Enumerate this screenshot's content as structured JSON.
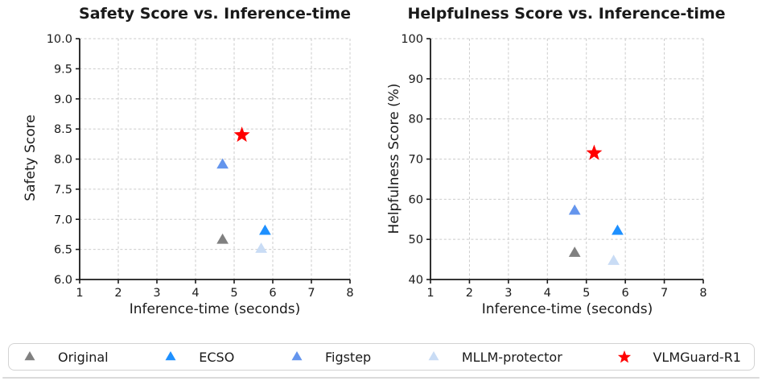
{
  "chart_data": [
    {
      "type": "scatter",
      "title": "Safety Score vs. Inference-time",
      "xlabel": "Inference-time (seconds)",
      "ylabel": "Safety Score",
      "xlim": [
        1,
        8
      ],
      "ylim": [
        6.0,
        10.0
      ],
      "grid": true,
      "legend_position": "bottom-shared",
      "xticks": [
        1,
        2,
        3,
        4,
        5,
        6,
        7,
        8
      ],
      "xtick_labels": [
        "1",
        "2",
        "3",
        "4",
        "5",
        "6",
        "7",
        "8"
      ],
      "yticks": [
        6.0,
        6.5,
        7.0,
        7.5,
        8.0,
        8.5,
        9.0,
        9.5,
        10.0
      ],
      "ytick_labels": [
        "6.0",
        "6.5",
        "7.0",
        "7.5",
        "8.0",
        "8.5",
        "9.0",
        "9.5",
        "10.0"
      ],
      "series": [
        {
          "name": "Original",
          "marker": "triangle",
          "color": "#808080",
          "points": [
            [
              4.7,
              6.65
            ]
          ]
        },
        {
          "name": "ECSO",
          "marker": "triangle",
          "color": "#1E90FF",
          "points": [
            [
              5.8,
              6.8
            ]
          ]
        },
        {
          "name": "Figstep",
          "marker": "triangle",
          "color": "#6495ED",
          "points": [
            [
              4.7,
              7.9
            ]
          ]
        },
        {
          "name": "MLLM-protector",
          "marker": "triangle",
          "color": "#C9DCF5",
          "points": [
            [
              5.7,
              6.5
            ]
          ]
        },
        {
          "name": "VLMGuard-R1",
          "marker": "star",
          "color": "#FF0000",
          "points": [
            [
              5.2,
              8.4
            ]
          ]
        }
      ]
    },
    {
      "type": "scatter",
      "title": "Helpfulness Score vs. Inference-time",
      "xlabel": "Inference-time (seconds)",
      "ylabel": "Helpfulness Score (%)",
      "xlim": [
        1,
        8
      ],
      "ylim": [
        40,
        100
      ],
      "grid": true,
      "legend_position": "bottom-shared",
      "xticks": [
        1,
        2,
        3,
        4,
        5,
        6,
        7,
        8
      ],
      "xtick_labels": [
        "1",
        "2",
        "3",
        "4",
        "5",
        "6",
        "7",
        "8"
      ],
      "yticks": [
        40,
        50,
        60,
        70,
        80,
        90,
        100
      ],
      "ytick_labels": [
        "40",
        "50",
        "60",
        "70",
        "80",
        "90",
        "100"
      ],
      "series": [
        {
          "name": "Original",
          "marker": "triangle",
          "color": "#808080",
          "points": [
            [
              4.7,
              46.5
            ]
          ]
        },
        {
          "name": "ECSO",
          "marker": "triangle",
          "color": "#1E90FF",
          "points": [
            [
              5.8,
              52
            ]
          ]
        },
        {
          "name": "Figstep",
          "marker": "triangle",
          "color": "#6495ED",
          "points": [
            [
              4.7,
              57
            ]
          ]
        },
        {
          "name": "MLLM-protector",
          "marker": "triangle",
          "color": "#C9DCF5",
          "points": [
            [
              5.7,
              44.5
            ]
          ]
        },
        {
          "name": "VLMGuard-R1",
          "marker": "star",
          "color": "#FF0000",
          "points": [
            [
              5.2,
              71.5
            ]
          ]
        }
      ]
    }
  ],
  "legend": {
    "items": [
      {
        "label": "Original",
        "marker": "triangle",
        "color": "#808080"
      },
      {
        "label": "ECSO",
        "marker": "triangle",
        "color": "#1E90FF"
      },
      {
        "label": "Figstep",
        "marker": "triangle",
        "color": "#6495ED"
      },
      {
        "label": "MLLM-protector",
        "marker": "triangle",
        "color": "#C9DCF5"
      },
      {
        "label": "VLMGuard-R1",
        "marker": "star",
        "color": "#FF0000"
      }
    ]
  }
}
